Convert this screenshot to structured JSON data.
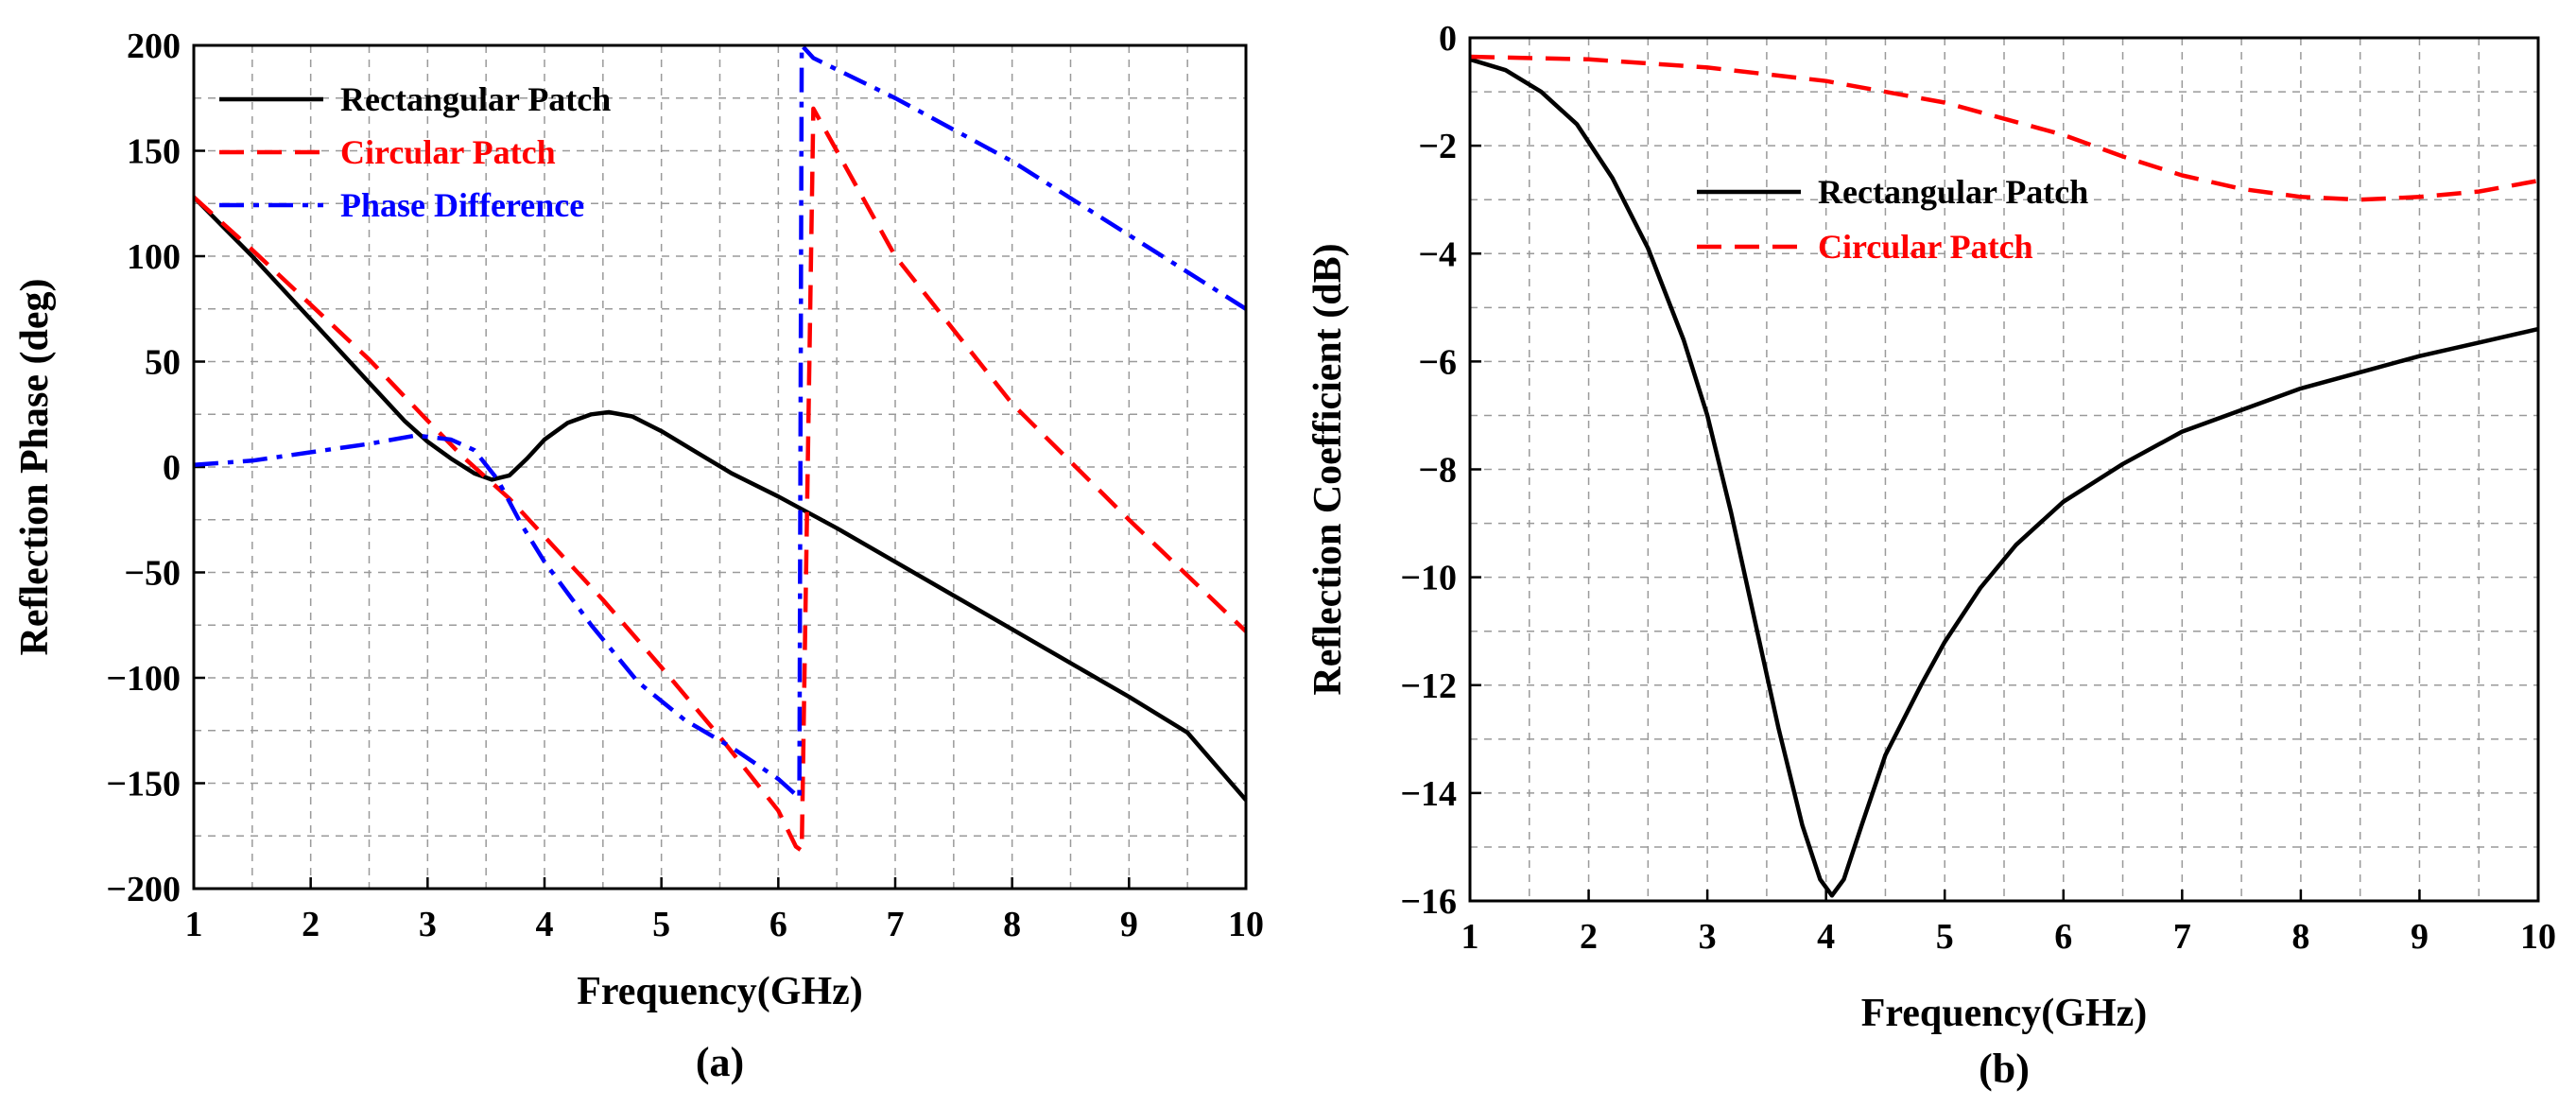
{
  "chart_data": [
    {
      "type": "line",
      "caption": "(a)",
      "xlabel": "Frequency(GHz)",
      "ylabel": "Reflection Phase (deg)",
      "xlim": [
        1,
        10
      ],
      "ylim": [
        -200,
        200
      ],
      "xticks": [
        1,
        2,
        3,
        4,
        5,
        6,
        7,
        8,
        9,
        10
      ],
      "yticks": [
        200,
        150,
        100,
        50,
        0,
        -50,
        -100,
        -150,
        -200
      ],
      "ytick_labels": [
        "200",
        "150",
        "100",
        "50",
        "0",
        "−50",
        "−100",
        "−150",
        "−200"
      ],
      "grid": true,
      "legend_position": "top-left",
      "series": [
        {
          "name": "Rectangular Patch",
          "color": "#000000",
          "style": "solid",
          "x": [
            1,
            1.5,
            2,
            2.5,
            2.8,
            3.0,
            3.2,
            3.4,
            3.55,
            3.7,
            3.85,
            4.0,
            4.2,
            4.4,
            4.55,
            4.75,
            5.0,
            5.3,
            5.6,
            6.0,
            6.5,
            7.0,
            7.5,
            8.0,
            8.5,
            9.0,
            9.5,
            10.0
          ],
          "y": [
            128,
            100,
            70,
            40,
            22,
            12,
            4,
            -3,
            -6,
            -4,
            4,
            13,
            21,
            25,
            26,
            24,
            17,
            7,
            -3,
            -14,
            -29,
            -45,
            -61,
            -77,
            -93,
            -109,
            -126,
            -158
          ]
        },
        {
          "name": "Circular Patch",
          "color": "#ff0000",
          "style": "dashed",
          "x": [
            1,
            1.5,
            2,
            2.5,
            3.0,
            3.3,
            3.5,
            3.7,
            4.0,
            4.5,
            5.0,
            5.5,
            6.0,
            6.15,
            6.2,
            6.3,
            7.0,
            8.0,
            9.0,
            10.0
          ],
          "y": [
            128,
            103,
            77,
            51,
            22,
            5,
            -5,
            -15,
            -33,
            -63,
            -95,
            -128,
            -163,
            -180,
            -182,
            170,
            100,
            30,
            -25,
            -78
          ]
        },
        {
          "name": "Phase Difference",
          "color": "#0000ff",
          "style": "dashdot",
          "x": [
            1,
            1.5,
            2,
            2.5,
            2.9,
            3.2,
            3.4,
            3.6,
            3.8,
            4.0,
            4.4,
            4.8,
            5.2,
            5.6,
            6.0,
            6.18,
            6.2,
            6.3,
            7.0,
            8.0,
            9.0,
            10.0
          ],
          "y": [
            1,
            3,
            7,
            11,
            15,
            13,
            8,
            -6,
            -27,
            -45,
            -75,
            -102,
            -120,
            -133,
            -148,
            -157,
            200,
            194,
            175,
            145,
            110,
            75
          ]
        }
      ]
    },
    {
      "type": "line",
      "caption": "(b)",
      "xlabel": "Frequency(GHz)",
      "ylabel": "Reflection Coefficient (dB)",
      "xlim": [
        1,
        10
      ],
      "ylim": [
        -16,
        0
      ],
      "xticks": [
        1,
        2,
        3,
        4,
        5,
        6,
        7,
        8,
        9,
        10
      ],
      "yticks": [
        0,
        -2,
        -4,
        -6,
        -8,
        -10,
        -12,
        -14,
        -16
      ],
      "ytick_labels": [
        "0",
        "−2",
        "−4",
        "−6",
        "−8",
        "−10",
        "−12",
        "−14",
        "−16"
      ],
      "grid": true,
      "legend_position": "upper-middle",
      "series": [
        {
          "name": "Rectangular Patch",
          "color": "#000000",
          "style": "solid",
          "x": [
            1,
            1.3,
            1.6,
            1.9,
            2.2,
            2.5,
            2.8,
            3.0,
            3.2,
            3.4,
            3.6,
            3.8,
            3.95,
            4.05,
            4.15,
            4.3,
            4.5,
            4.8,
            5.0,
            5.3,
            5.6,
            6.0,
            6.5,
            7.0,
            7.5,
            8.0,
            8.5,
            9.0,
            9.5,
            10.0
          ],
          "y": [
            -0.4,
            -0.6,
            -1.0,
            -1.6,
            -2.6,
            -3.9,
            -5.6,
            -7.0,
            -8.8,
            -10.8,
            -12.8,
            -14.6,
            -15.6,
            -15.9,
            -15.6,
            -14.6,
            -13.3,
            -12.0,
            -11.2,
            -10.2,
            -9.4,
            -8.6,
            -7.9,
            -7.3,
            -6.9,
            -6.5,
            -6.2,
            -5.9,
            -5.65,
            -5.4
          ]
        },
        {
          "name": "Circular Patch",
          "color": "#ff0000",
          "style": "dashed",
          "x": [
            1,
            2,
            3,
            4,
            5,
            6,
            6.5,
            7,
            7.5,
            8,
            8.5,
            9,
            9.5,
            10
          ],
          "y": [
            -0.35,
            -0.4,
            -0.55,
            -0.8,
            -1.2,
            -1.8,
            -2.2,
            -2.55,
            -2.8,
            -2.95,
            -3.0,
            -2.95,
            -2.85,
            -2.65
          ]
        }
      ]
    }
  ]
}
